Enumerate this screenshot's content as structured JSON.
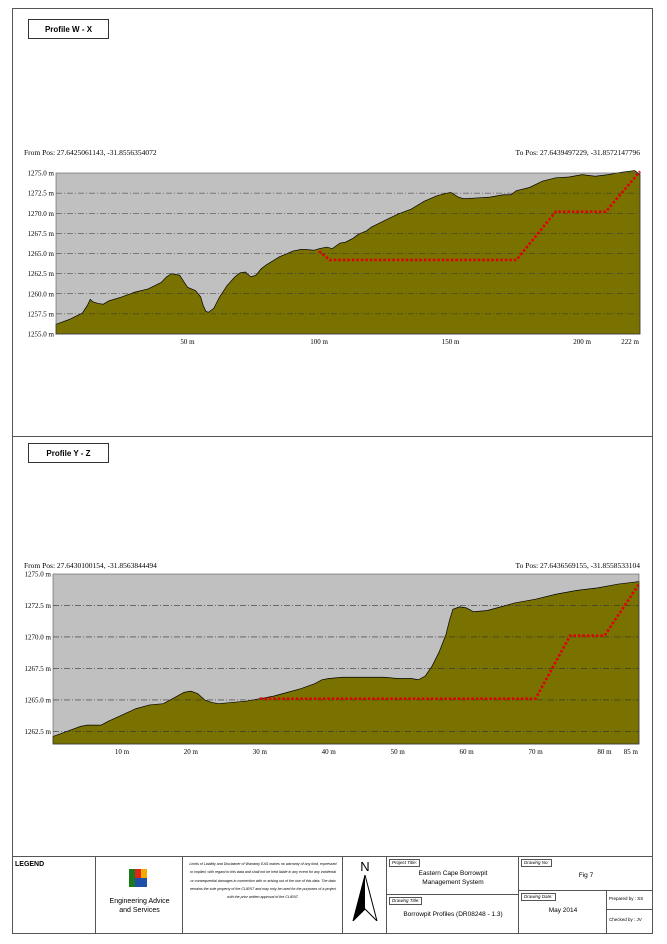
{
  "profiles": [
    {
      "label": "Profile W - X",
      "from_pos": "From Pos: 27.6425061143, -31.8556354072",
      "to_pos": "To Pos: 27.6439497229, -31.8572147796"
    },
    {
      "label": "Profile Y - Z",
      "from_pos": "From Pos: 27.6430100154, -31.8563844494",
      "to_pos": "To Pos: 27.6436569155, -31.8558533104"
    }
  ],
  "chart_data": [
    {
      "type": "area",
      "title": "Profile W - X",
      "xlabel": "",
      "ylabel": "",
      "xlim": [
        0,
        222
      ],
      "ylim": [
        1255,
        1275
      ],
      "x_ticks": [
        50,
        100,
        150,
        200,
        222
      ],
      "x_tick_labels": [
        "50 m",
        "100 m",
        "150 m",
        "200 m",
        "222 m"
      ],
      "y_ticks": [
        1255,
        1257.5,
        1260,
        1262.5,
        1265,
        1267.5,
        1270,
        1272.5,
        1275
      ],
      "y_tick_labels": [
        "1255.0 m",
        "1257.5 m",
        "1260.0 m",
        "1262.5 m",
        "1265.0 m",
        "1267.5 m",
        "1270.0 m",
        "1272.5 m",
        "1275.0 m"
      ],
      "grid": true,
      "fill_color": "#7a7200",
      "background_color": "#c0c0c0",
      "design_line_color": "#e00000",
      "ground": {
        "x": [
          0,
          5,
          10,
          12,
          13,
          14,
          16,
          18,
          20,
          25,
          30,
          35,
          40,
          42,
          44,
          47,
          50,
          53,
          55,
          56,
          57,
          58,
          60,
          62,
          65,
          68,
          70,
          72,
          74,
          76,
          78,
          80,
          85,
          88,
          90,
          93,
          95,
          98,
          100,
          103,
          105,
          108,
          110,
          113,
          115,
          118,
          120,
          125,
          130,
          135,
          140,
          145,
          150,
          153,
          155,
          160,
          165,
          170,
          173,
          175,
          180,
          185,
          190,
          195,
          200,
          205,
          210,
          215,
          220,
          222
        ],
        "y": [
          1256.2,
          1256.8,
          1257.6,
          1258.6,
          1259.3,
          1259,
          1258.8,
          1258.7,
          1259.1,
          1259.6,
          1260.2,
          1260.6,
          1261.4,
          1262.1,
          1262.5,
          1262.3,
          1260.8,
          1260.4,
          1259.6,
          1258.5,
          1257.8,
          1257.7,
          1258.2,
          1259.5,
          1261,
          1262.1,
          1262.6,
          1262.7,
          1262.1,
          1262.3,
          1263.1,
          1263.6,
          1264.6,
          1265,
          1265.3,
          1265.5,
          1265.5,
          1265.4,
          1265.6,
          1265.8,
          1265.6,
          1266.3,
          1266.4,
          1266.9,
          1267.4,
          1267.8,
          1268.3,
          1269.1,
          1269.9,
          1270.5,
          1271.5,
          1272.2,
          1272.6,
          1272,
          1271.8,
          1271.9,
          1272,
          1272.3,
          1272.3,
          1272.8,
          1273.2,
          1274,
          1274.4,
          1274.5,
          1274.8,
          1274.6,
          1274.8,
          1275.1,
          1275.3,
          1274.8
        ],
        "name": ""
      },
      "design": {
        "x": [
          100,
          104,
          175,
          190,
          209,
          222
        ],
        "y": [
          1265.3,
          1264.2,
          1264.2,
          1270.2,
          1270.2,
          1275.2
        ],
        "name": ""
      }
    },
    {
      "type": "area",
      "title": "Profile Y - Z",
      "xlabel": "",
      "ylabel": "",
      "xlim": [
        0,
        85
      ],
      "ylim": [
        1261.5,
        1275
      ],
      "x_ticks": [
        10,
        20,
        30,
        40,
        50,
        60,
        70,
        80,
        85
      ],
      "x_tick_labels": [
        "10 m",
        "20 m",
        "30 m",
        "40 m",
        "50 m",
        "60 m",
        "70 m",
        "80 m",
        "85 m"
      ],
      "y_ticks": [
        1262.5,
        1265,
        1267.5,
        1270,
        1272.5,
        1275
      ],
      "y_tick_labels": [
        "1262.5 m",
        "1265.0 m",
        "1267.5 m",
        "1270.0 m",
        "1272.5 m",
        "1275.0 m"
      ],
      "grid": true,
      "fill_color": "#7a7200",
      "background_color": "#c0c0c0",
      "design_line_color": "#e00000",
      "ground": {
        "x": [
          0,
          2,
          4,
          5,
          7,
          8,
          10,
          12,
          14,
          16,
          18,
          19,
          20,
          21,
          22,
          23,
          24,
          26,
          28,
          30,
          32,
          34,
          36,
          38,
          39,
          40,
          42,
          44,
          46,
          48,
          50,
          52,
          53,
          54,
          55,
          56,
          57,
          57.5,
          58,
          59,
          60,
          61,
          63,
          65,
          67,
          70,
          73,
          76,
          79,
          82,
          85
        ],
        "y": [
          1262.1,
          1262.5,
          1262.9,
          1263,
          1263,
          1263.3,
          1263.8,
          1264.3,
          1264.6,
          1264.7,
          1265.3,
          1265.6,
          1265.7,
          1265.5,
          1265,
          1264.8,
          1264.7,
          1264.8,
          1264.9,
          1265.1,
          1265.3,
          1265.6,
          1265.9,
          1266.3,
          1266.6,
          1266.7,
          1266.8,
          1266.8,
          1266.8,
          1266.8,
          1266.7,
          1266.7,
          1266.6,
          1266.9,
          1267.7,
          1268.8,
          1270.2,
          1271.3,
          1272.2,
          1272.4,
          1272.3,
          1272,
          1272.1,
          1272.4,
          1272.7,
          1273,
          1273.4,
          1273.7,
          1273.9,
          1274.2,
          1274.4
        ],
        "name": ""
      },
      "design": {
        "x": [
          30,
          70,
          75,
          80,
          85
        ],
        "y": [
          1265.1,
          1265.1,
          1270.1,
          1270.1,
          1274.2
        ],
        "name": ""
      }
    }
  ],
  "legend_block": {
    "legend_title": "LEGEND",
    "company_line1": "Engineering Advice",
    "company_line2": "and Services",
    "disclaimer": "Limits of Liability and Disclaimer of Warranty EAS makes no warranty of any kind, expressed or implied, with regard to this data and shall not be held liable in any event for any incidental or consequential damages in connection with or arising out of the use of this data. The data remains the sole property of the CLIENT and may only be used for the purposes of a project with the prior written approval of the CLIENT.",
    "north_letter": "N",
    "project_title_label": "Project Title:",
    "project_title_line1": "Eastern Cape Borrowpit",
    "project_title_line2": "Management System",
    "drawing_title_label": "Drawing Title:",
    "drawing_title": "Borrowpit Profiles (DR08248 - 1.3)",
    "drawing_no_label": "Drawing No:",
    "drawing_no": "Fig 7",
    "drawing_date_label": "Drawing Date:",
    "drawing_date": "May 2014",
    "prepared_by": "Prepared by : SS",
    "checked_by": "Checked by : JV"
  }
}
